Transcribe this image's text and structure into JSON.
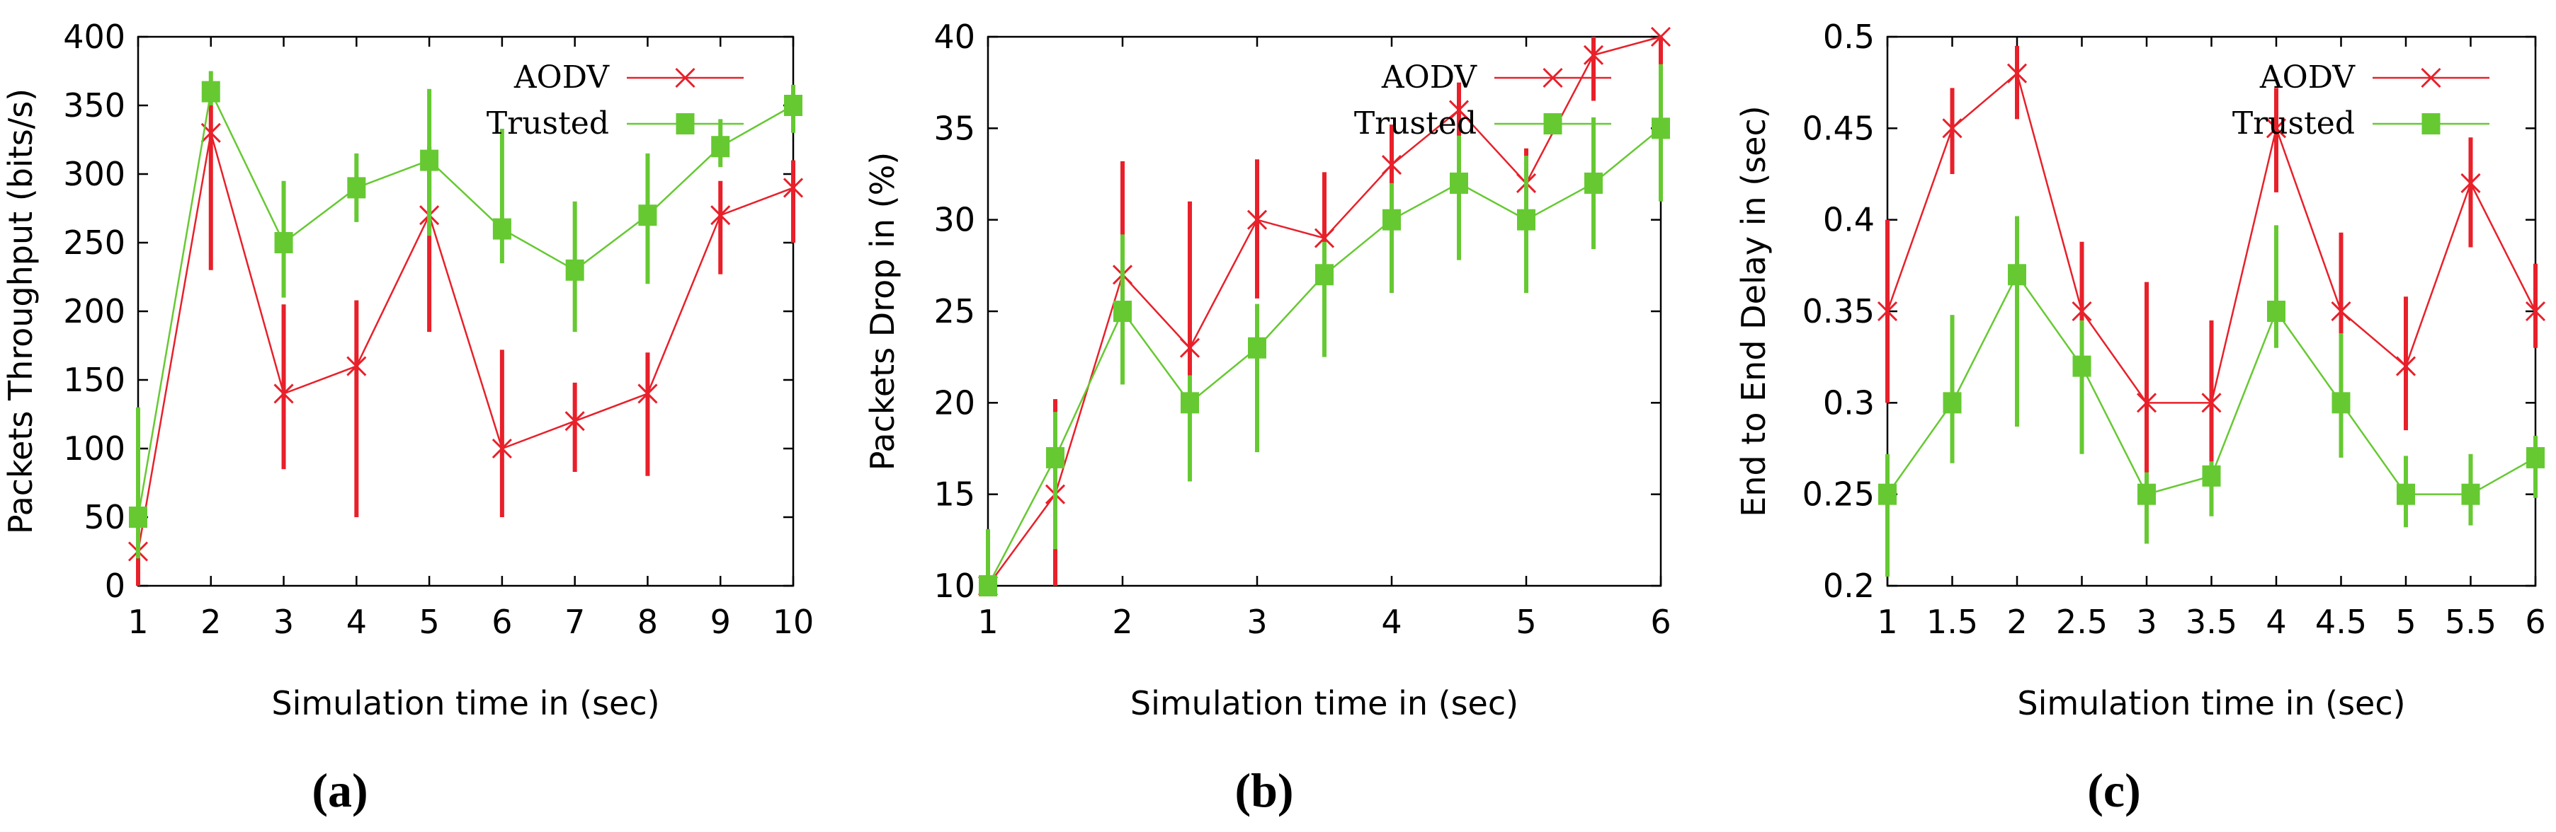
{
  "chart_data": [
    {
      "type": "line",
      "panel_label": "(a)",
      "xlabel": "Simulation time in (sec)",
      "ylabel": "Packets Throughput (bits/s)",
      "xlim": [
        1,
        10
      ],
      "ylim": [
        0,
        400
      ],
      "xticks": [
        "1",
        "2",
        "3",
        "4",
        "5",
        "6",
        "7",
        "8",
        "9",
        "10"
      ],
      "yticks": [
        "0",
        "50",
        "100",
        "150",
        "200",
        "250",
        "300",
        "350",
        "400"
      ],
      "xtick_values": [
        1,
        2,
        3,
        4,
        5,
        6,
        7,
        8,
        9,
        10
      ],
      "ytick_values": [
        0,
        50,
        100,
        150,
        200,
        250,
        300,
        350,
        400
      ],
      "grid": false,
      "legend": "top-right",
      "series": [
        {
          "name": "AODV",
          "color": "#e8202a",
          "marker": "x",
          "x": [
            1,
            2,
            3,
            4,
            5,
            6,
            7,
            8,
            9,
            10
          ],
          "y": [
            25,
            330,
            140,
            160,
            270,
            100,
            120,
            140,
            270,
            290
          ],
          "err_low": [
            0,
            230,
            85,
            50,
            185,
            50,
            83,
            80,
            227,
            250
          ],
          "err_high": [
            115,
            350,
            205,
            208,
            320,
            172,
            148,
            170,
            295,
            310
          ]
        },
        {
          "name": "Trusted",
          "color": "#66c932",
          "marker": "square",
          "x": [
            1,
            2,
            3,
            4,
            5,
            6,
            7,
            8,
            9,
            10
          ],
          "y": [
            50,
            360,
            250,
            290,
            310,
            260,
            230,
            270,
            320,
            350
          ],
          "err_low": [
            20,
            350,
            210,
            265,
            255,
            235,
            185,
            220,
            305,
            330
          ],
          "err_high": [
            130,
            375,
            295,
            315,
            362,
            333,
            280,
            315,
            340,
            365
          ]
        }
      ]
    },
    {
      "type": "line",
      "panel_label": "(b)",
      "xlabel": "Simulation time in (sec)",
      "ylabel": "Packets Drop in (%)",
      "xlim": [
        1,
        6
      ],
      "ylim": [
        10,
        40
      ],
      "xticks": [
        "1",
        "2",
        "3",
        "4",
        "5",
        "6"
      ],
      "yticks": [
        "10",
        "15",
        "20",
        "25",
        "30",
        "35",
        "40"
      ],
      "xtick_values": [
        1,
        2,
        3,
        4,
        5,
        6
      ],
      "ytick_values": [
        10,
        15,
        20,
        25,
        30,
        35,
        40
      ],
      "grid": false,
      "legend": "top-right",
      "series": [
        {
          "name": "AODV",
          "color": "#e8202a",
          "marker": "x",
          "x": [
            1,
            1.5,
            2,
            2.5,
            3,
            3.5,
            4,
            4.5,
            5,
            5.5,
            6
          ],
          "y": [
            10,
            15,
            27,
            23,
            30,
            29,
            33,
            36,
            32,
            39,
            40
          ],
          "err_low": [
            10,
            10,
            21.5,
            18.5,
            25.7,
            23.8,
            28.3,
            32.5,
            29,
            36.5,
            38
          ],
          "err_high": [
            11,
            20.2,
            33.2,
            31,
            33.3,
            32.6,
            35.2,
            37.5,
            33.9,
            40,
            40
          ]
        },
        {
          "name": "Trusted",
          "color": "#66c932",
          "marker": "square",
          "x": [
            1,
            1.5,
            2,
            2.5,
            3,
            3.5,
            4,
            4.5,
            5,
            5.5,
            6
          ],
          "y": [
            10,
            17,
            25,
            20,
            23,
            27,
            30,
            32,
            30,
            32,
            35
          ],
          "err_low": [
            10,
            12,
            21,
            15.7,
            17.3,
            22.5,
            26,
            27.8,
            26,
            28.4,
            31
          ],
          "err_high": [
            13.1,
            19.5,
            29.2,
            21.5,
            25.4,
            28.8,
            32,
            34.6,
            33.5,
            35.6,
            38.5
          ]
        }
      ]
    },
    {
      "type": "line",
      "panel_label": "(c)",
      "xlabel": "Simulation time in (sec)",
      "ylabel": "End to End Delay in (sec)",
      "xlim": [
        1,
        6
      ],
      "ylim": [
        0.2,
        0.5
      ],
      "xticks": [
        "1",
        "1.5",
        "2",
        "2.5",
        "3",
        "3.5",
        "4",
        "4.5",
        "5",
        "5.5",
        "6"
      ],
      "yticks": [
        "0.2",
        "0.25",
        "0.3",
        "0.35",
        "0.4",
        "0.45",
        "0.5"
      ],
      "xtick_values": [
        1,
        1.5,
        2,
        2.5,
        3,
        3.5,
        4,
        4.5,
        5,
        5.5,
        6
      ],
      "ytick_values": [
        0.2,
        0.25,
        0.3,
        0.35,
        0.4,
        0.45,
        0.5
      ],
      "grid": false,
      "legend": "top-right",
      "series": [
        {
          "name": "AODV",
          "color": "#e8202a",
          "marker": "x",
          "x": [
            1,
            1.5,
            2,
            2.5,
            3,
            3.5,
            4,
            4.5,
            5,
            5.5,
            6
          ],
          "y": [
            0.35,
            0.45,
            0.48,
            0.35,
            0.3,
            0.3,
            0.45,
            0.35,
            0.32,
            0.42,
            0.35
          ],
          "err_low": [
            0.3,
            0.425,
            0.455,
            0.3,
            0.26,
            0.255,
            0.415,
            0.305,
            0.285,
            0.385,
            0.33
          ],
          "err_high": [
            0.4,
            0.472,
            0.495,
            0.388,
            0.366,
            0.345,
            0.472,
            0.393,
            0.358,
            0.445,
            0.376
          ]
        },
        {
          "name": "Trusted",
          "color": "#66c932",
          "marker": "square",
          "x": [
            1,
            1.5,
            2,
            2.5,
            3,
            3.5,
            4,
            4.5,
            5,
            5.5,
            6
          ],
          "y": [
            0.25,
            0.3,
            0.37,
            0.32,
            0.25,
            0.26,
            0.35,
            0.3,
            0.25,
            0.25,
            0.27
          ],
          "err_low": [
            0.205,
            0.267,
            0.287,
            0.272,
            0.223,
            0.238,
            0.33,
            0.27,
            0.232,
            0.233,
            0.248
          ],
          "err_high": [
            0.272,
            0.348,
            0.402,
            0.345,
            0.262,
            0.268,
            0.397,
            0.338,
            0.271,
            0.272,
            0.282
          ]
        }
      ]
    }
  ]
}
